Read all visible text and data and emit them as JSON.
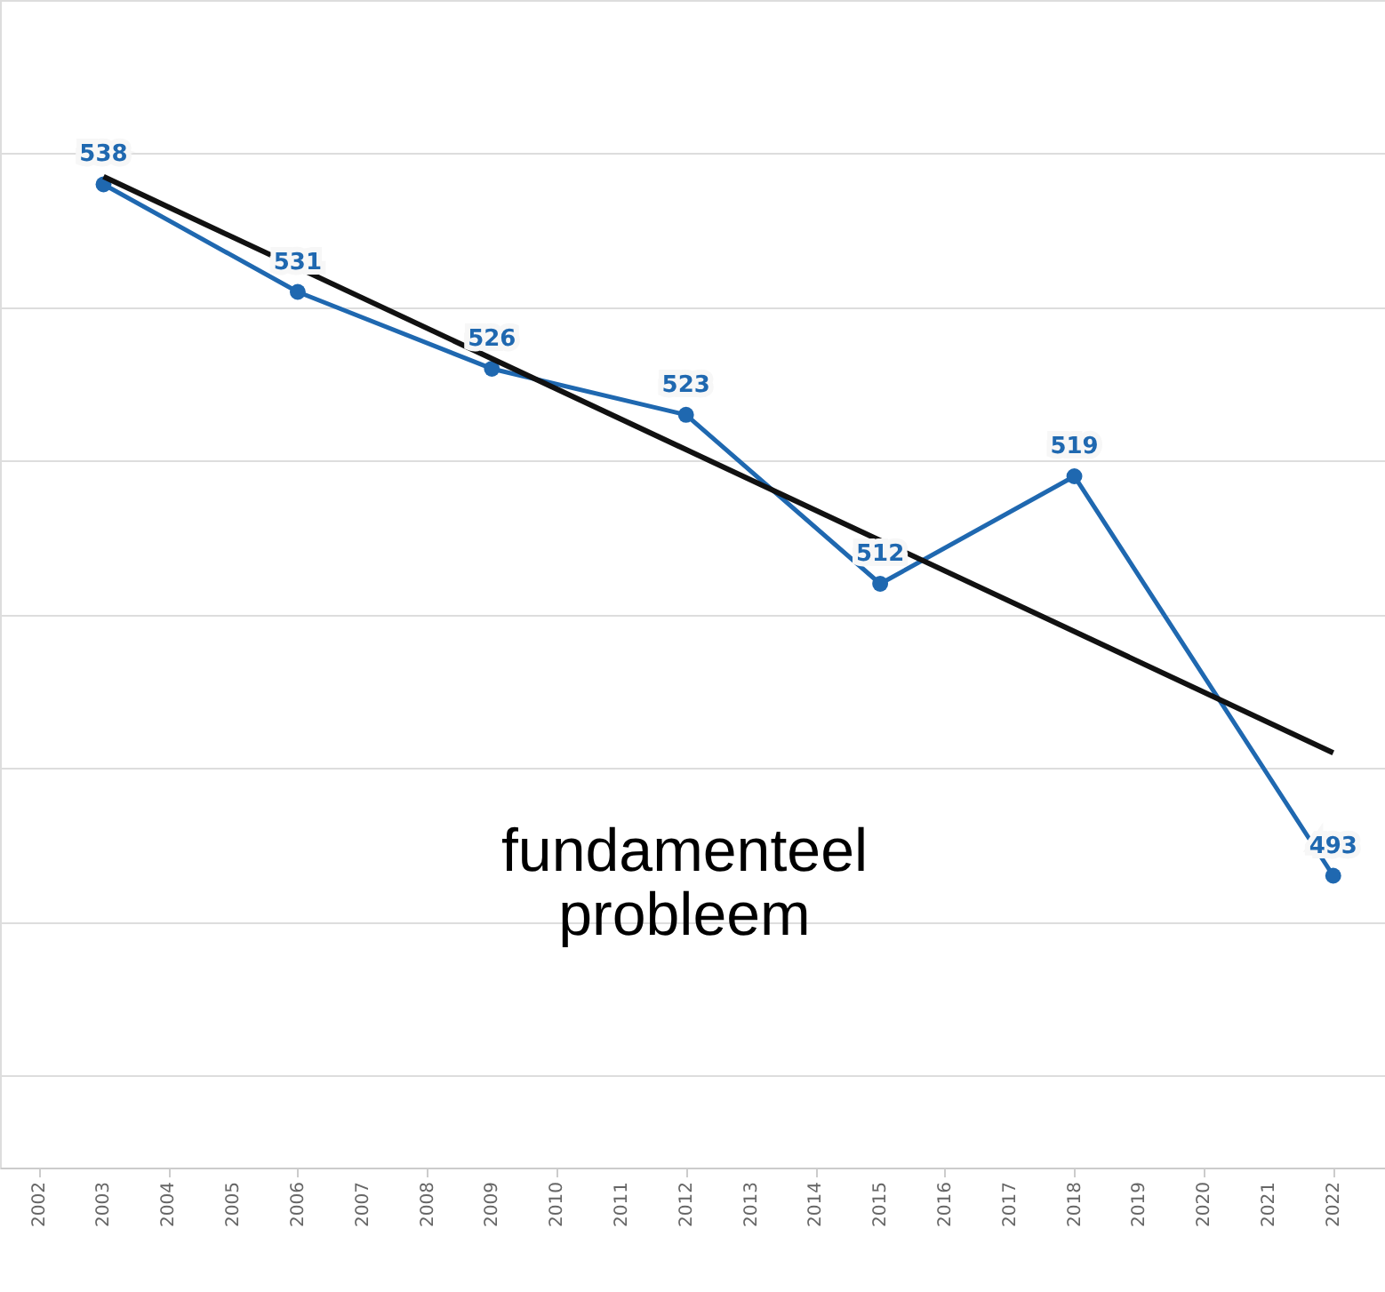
{
  "chart_data": {
    "type": "line",
    "xlim": [
      2001.4,
      2022.8
    ],
    "xticks": [
      2002,
      2003,
      2004,
      2005,
      2006,
      2007,
      2008,
      2009,
      2010,
      2011,
      2012,
      2013,
      2014,
      2015,
      2016,
      2017,
      2018,
      2019,
      2020,
      2021,
      2022
    ],
    "ylim": [
      474,
      550
    ],
    "yticks": [
      {
        "value": 480,
        "label": null
      },
      {
        "value": 490,
        "label": null
      },
      {
        "value": 500,
        "label": null
      },
      {
        "value": 510,
        "label": null
      },
      {
        "value": 520,
        "label": null
      },
      {
        "value": 530,
        "label": null
      },
      {
        "value": 540,
        "label": null
      }
    ],
    "tick_labels": "x",
    "grid": "y",
    "series": [
      {
        "color": "#1f68b0",
        "marker": "circle",
        "x": [
          2003,
          2006,
          2009,
          2012,
          2015,
          2018,
          2022
        ],
        "values": [
          538,
          531,
          526,
          523,
          512,
          519,
          493
        ],
        "value_labels": [
          "538",
          "531",
          "526",
          "523",
          "512",
          "519",
          "493"
        ]
      },
      {
        "color": "#111111",
        "marker": "none",
        "x": [
          2003,
          2022
        ],
        "values": [
          538.5,
          501
        ]
      }
    ],
    "annotations": [
      "fundamenteel\nprobleem"
    ]
  }
}
